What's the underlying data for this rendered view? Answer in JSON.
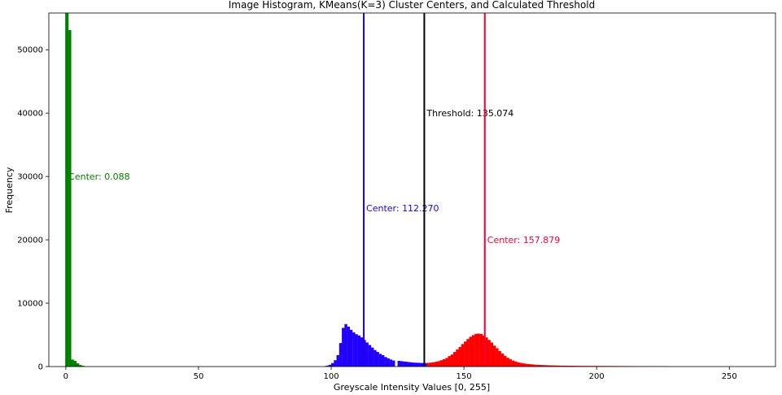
{
  "chart_data": {
    "type": "bar",
    "title": "Image Histogram, KMeans(K=3) Cluster Centers, and Calculated Threshold",
    "xlabel": "Greyscale Intensity Values [0, 255]",
    "ylabel": "Frequency",
    "xlim": [
      -6.4,
      267.4
    ],
    "ylim": [
      0,
      55800
    ],
    "xticks": [
      0,
      50,
      100,
      150,
      200,
      250
    ],
    "yticks": [
      0,
      10000,
      20000,
      30000,
      40000,
      50000
    ],
    "grid": false,
    "series": [
      {
        "color": "#008000",
        "x": [
          0,
          1,
          2,
          3,
          4,
          5,
          6
        ],
        "values": [
          55800,
          53100,
          1100,
          900,
          500,
          250,
          120
        ]
      },
      {
        "color": "#2200ff",
        "x": [
          97,
          98,
          99,
          100,
          101,
          102,
          103,
          104,
          105,
          106,
          107,
          108,
          109,
          110,
          111,
          112,
          113,
          114,
          115,
          116,
          117,
          118,
          119,
          120,
          121,
          122,
          123,
          124,
          125,
          126,
          127,
          128,
          129,
          130,
          131,
          132,
          133,
          134,
          135
        ],
        "values": [
          60,
          150,
          280,
          550,
          1000,
          1800,
          3700,
          6100,
          6700,
          6300,
          5800,
          5400,
          5100,
          4900,
          4600,
          4200,
          3800,
          3400,
          3000,
          2600,
          2300,
          2000,
          1800,
          1500,
          1300,
          1100,
          950,
          0,
          900,
          850,
          800,
          750,
          700,
          650,
          620,
          600,
          580,
          560,
          550
        ]
      },
      {
        "color": "#ff0000",
        "x": [
          136,
          137,
          138,
          139,
          140,
          141,
          142,
          143,
          144,
          145,
          146,
          147,
          148,
          149,
          150,
          151,
          152,
          153,
          154,
          155,
          156,
          157,
          158,
          159,
          160,
          161,
          162,
          163,
          164,
          165,
          166,
          167,
          168,
          169,
          170,
          171,
          172,
          173,
          174,
          175,
          176,
          177,
          178,
          179,
          180,
          181,
          182,
          183,
          184,
          185,
          186,
          187,
          188,
          189,
          190,
          191,
          192,
          193,
          194,
          195,
          196,
          197,
          198,
          199,
          200,
          201,
          202,
          203,
          204,
          205,
          206,
          207,
          208,
          209,
          210,
          211,
          212,
          213,
          214,
          215,
          216,
          217,
          218,
          219,
          220,
          221,
          222,
          223,
          224,
          225,
          226
        ],
        "values": [
          580,
          620,
          680,
          760,
          850,
          1000,
          1150,
          1350,
          1650,
          1900,
          2300,
          2700,
          3100,
          3550,
          3950,
          4350,
          4700,
          4950,
          5150,
          5200,
          5150,
          4900,
          4600,
          4200,
          3800,
          3300,
          2900,
          2450,
          2050,
          1700,
          1400,
          1150,
          950,
          800,
          680,
          580,
          500,
          440,
          390,
          350,
          310,
          280,
          260,
          240,
          220,
          200,
          190,
          180,
          170,
          160,
          150,
          145,
          140,
          135,
          130,
          125,
          120,
          115,
          110,
          108,
          105,
          103,
          100,
          98,
          96,
          94,
          92,
          90,
          88,
          86,
          84,
          82,
          80,
          78,
          76,
          74,
          72,
          70,
          68,
          66,
          64,
          62,
          60,
          58,
          56,
          54,
          52,
          50,
          48,
          46,
          44
        ]
      }
    ],
    "vlines": [
      {
        "x": 0.088,
        "color": "#008000",
        "label": "Center: 0.088",
        "label_y": 30000
      },
      {
        "x": 112.27,
        "color": "#2200dd",
        "label": "Center: 112.270",
        "label_y": 25000
      },
      {
        "x": 135.074,
        "color": "#000000",
        "label": "Threshold: 135.074",
        "label_y": 40000
      },
      {
        "x": 157.879,
        "color": "#ff0033",
        "label": "Center: 157.879",
        "label_y": 20000
      }
    ]
  }
}
